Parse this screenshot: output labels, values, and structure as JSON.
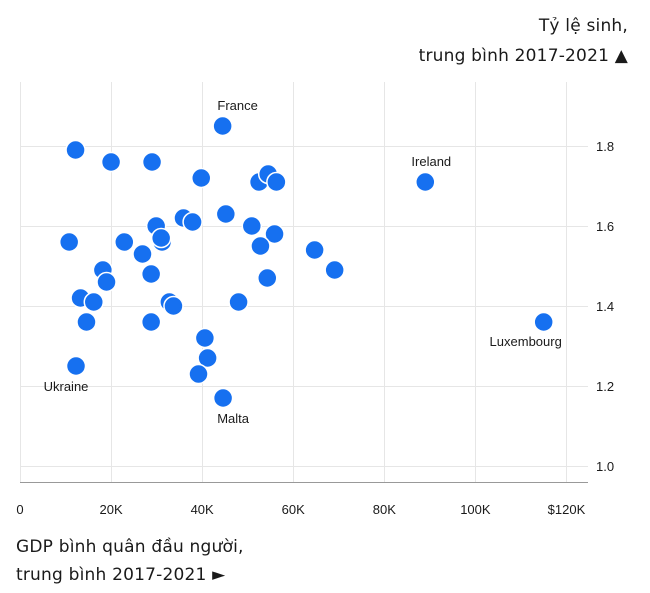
{
  "chart_data": {
    "type": "scatter",
    "ylabel_line1": "Tỷ lệ sinh,",
    "ylabel_line2": "trung bình 2017-2021",
    "xlabel_line1": "GDP bình quân đầu người,",
    "xlabel_line2": "trung bình 2017-2021",
    "y_arrow": "▲",
    "x_arrow": "►",
    "xlim": [
      0,
      130000
    ],
    "ylim": [
      0.96,
      1.96
    ],
    "x_ticks": [
      {
        "value": 0,
        "label": "0"
      },
      {
        "value": 20000,
        "label": "20K"
      },
      {
        "value": 40000,
        "label": "40K"
      },
      {
        "value": 60000,
        "label": "60K"
      },
      {
        "value": 80000,
        "label": "80K"
      },
      {
        "value": 100000,
        "label": "100K"
      },
      {
        "value": 120000,
        "label": "$120K"
      }
    ],
    "y_ticks": [
      {
        "value": 1.0,
        "label": "1.0"
      },
      {
        "value": 1.2,
        "label": "1.2"
      },
      {
        "value": 1.4,
        "label": "1.4"
      },
      {
        "value": 1.6,
        "label": "1.6"
      },
      {
        "value": 1.8,
        "label": "1.8"
      }
    ],
    "dot_color": "#1670f0",
    "points": [
      {
        "x": 44500,
        "y": 1.85,
        "label": "France"
      },
      {
        "x": 89000,
        "y": 1.71,
        "label": "Ireland"
      },
      {
        "x": 115000,
        "y": 1.36,
        "label": "Luxembourg"
      },
      {
        "x": 12300,
        "y": 1.25,
        "label": "Ukraine"
      },
      {
        "x": 44600,
        "y": 1.17,
        "label": "Malta"
      },
      {
        "x": 12200,
        "y": 1.79
      },
      {
        "x": 20000,
        "y": 1.76
      },
      {
        "x": 29000,
        "y": 1.76
      },
      {
        "x": 39800,
        "y": 1.72
      },
      {
        "x": 52500,
        "y": 1.71
      },
      {
        "x": 54500,
        "y": 1.73
      },
      {
        "x": 56300,
        "y": 1.71
      },
      {
        "x": 45200,
        "y": 1.63
      },
      {
        "x": 35900,
        "y": 1.62
      },
      {
        "x": 37900,
        "y": 1.61
      },
      {
        "x": 29900,
        "y": 1.6
      },
      {
        "x": 50900,
        "y": 1.6
      },
      {
        "x": 55900,
        "y": 1.58
      },
      {
        "x": 31200,
        "y": 1.56
      },
      {
        "x": 31000,
        "y": 1.57
      },
      {
        "x": 22900,
        "y": 1.56
      },
      {
        "x": 10800,
        "y": 1.56
      },
      {
        "x": 52800,
        "y": 1.55
      },
      {
        "x": 64700,
        "y": 1.54
      },
      {
        "x": 26900,
        "y": 1.53
      },
      {
        "x": 69100,
        "y": 1.49
      },
      {
        "x": 28800,
        "y": 1.48
      },
      {
        "x": 18200,
        "y": 1.49
      },
      {
        "x": 19000,
        "y": 1.46
      },
      {
        "x": 54300,
        "y": 1.47
      },
      {
        "x": 13300,
        "y": 1.42
      },
      {
        "x": 16200,
        "y": 1.41
      },
      {
        "x": 32800,
        "y": 1.41
      },
      {
        "x": 33700,
        "y": 1.4
      },
      {
        "x": 48000,
        "y": 1.41
      },
      {
        "x": 14600,
        "y": 1.36
      },
      {
        "x": 28800,
        "y": 1.36
      },
      {
        "x": 40600,
        "y": 1.32
      },
      {
        "x": 41200,
        "y": 1.27
      },
      {
        "x": 39200,
        "y": 1.23
      }
    ]
  }
}
